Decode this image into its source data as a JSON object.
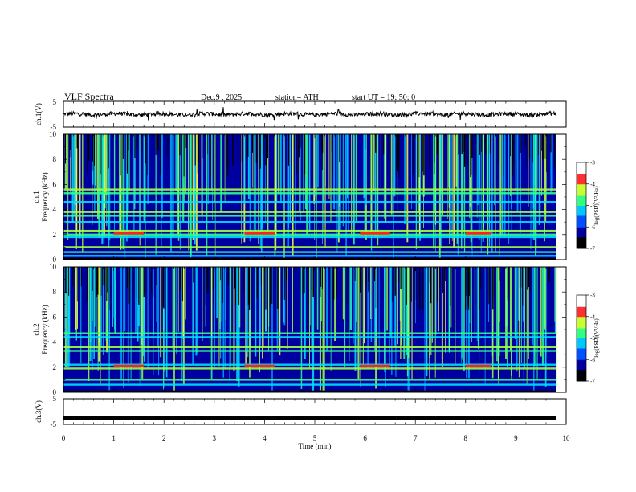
{
  "header": {
    "title": "VLF  Spectra",
    "date": "Dec.9  , 2025",
    "station": "station= ATH",
    "start_ut": "start  UT  =   19: 50: 0"
  },
  "chart_data": [
    {
      "type": "line",
      "name": "ch1-waveform",
      "ylabel": "ch.1(V)",
      "ylim": [
        -5,
        5
      ],
      "yticks": [
        "5",
        "-5"
      ],
      "xlim": [
        0,
        10
      ],
      "baseline": 0,
      "line_color": "#000000"
    },
    {
      "type": "heatmap",
      "name": "ch1-spectrogram",
      "ylabel_channel": "ch.1",
      "ylabel": "Frequency  (kHz)",
      "ylim": [
        0,
        10
      ],
      "yticks": [
        "0",
        "2",
        "4",
        "6",
        "8",
        "10"
      ],
      "xlim": [
        0,
        9.8
      ],
      "colorbar": {
        "label": "log(PSD)(V²/Hz)",
        "range": [
          -7,
          -3
        ],
        "ticks": [
          "-3",
          "-4",
          "-5",
          "-6",
          "-7"
        ],
        "colors": [
          "#000000",
          "#0000a0",
          "#0050ff",
          "#00c8ff",
          "#30ff80",
          "#c8ff30",
          "#ff3030",
          "#ffffff"
        ]
      },
      "bands_khz": [
        0.3,
        0.6,
        1.0,
        1.8,
        2.0,
        2.3,
        3.0,
        3.5,
        3.8,
        4.6,
        5.3,
        5.6
      ],
      "event_segments": [
        [
          1.0,
          1.6
        ],
        [
          3.6,
          4.2
        ],
        [
          5.9,
          6.5
        ],
        [
          8.0,
          8.5
        ]
      ]
    },
    {
      "type": "heatmap",
      "name": "ch2-spectrogram",
      "ylabel_channel": "ch.2",
      "ylabel": "Frequency  (kHz)",
      "ylim": [
        0,
        10
      ],
      "yticks": [
        "0",
        "2",
        "4",
        "6",
        "8",
        "10"
      ],
      "xlim": [
        0,
        9.8
      ],
      "colorbar": {
        "label": "log(PSD)(V²/Hz)",
        "range": [
          -7,
          -3
        ],
        "ticks": [
          "-3",
          "-4",
          "-5",
          "-6",
          "-7"
        ],
        "colors": [
          "#000000",
          "#0000a0",
          "#0050ff",
          "#00c8ff",
          "#30ff80",
          "#c8ff30",
          "#ff3030",
          "#ffffff"
        ]
      },
      "bands_khz": [
        0.6,
        1.0,
        1.9,
        2.2,
        3.3,
        3.6,
        4.4,
        4.7
      ],
      "event_segments": [
        [
          1.0,
          1.6
        ],
        [
          3.6,
          4.2
        ],
        [
          5.9,
          6.5
        ],
        [
          8.0,
          8.5
        ]
      ]
    },
    {
      "type": "line",
      "name": "ch3-waveform",
      "ylabel": "ch.3(V)",
      "ylim": [
        -5,
        5
      ],
      "yticks": [
        "5",
        "-5"
      ],
      "xlabel": "Time  (min)",
      "xlim": [
        0,
        10
      ],
      "xticks": [
        "0",
        "1",
        "2",
        "3",
        "4",
        "5",
        "6",
        "7",
        "8",
        "9",
        "10"
      ],
      "constant_value": -2.5,
      "line_color": "#000000"
    }
  ]
}
